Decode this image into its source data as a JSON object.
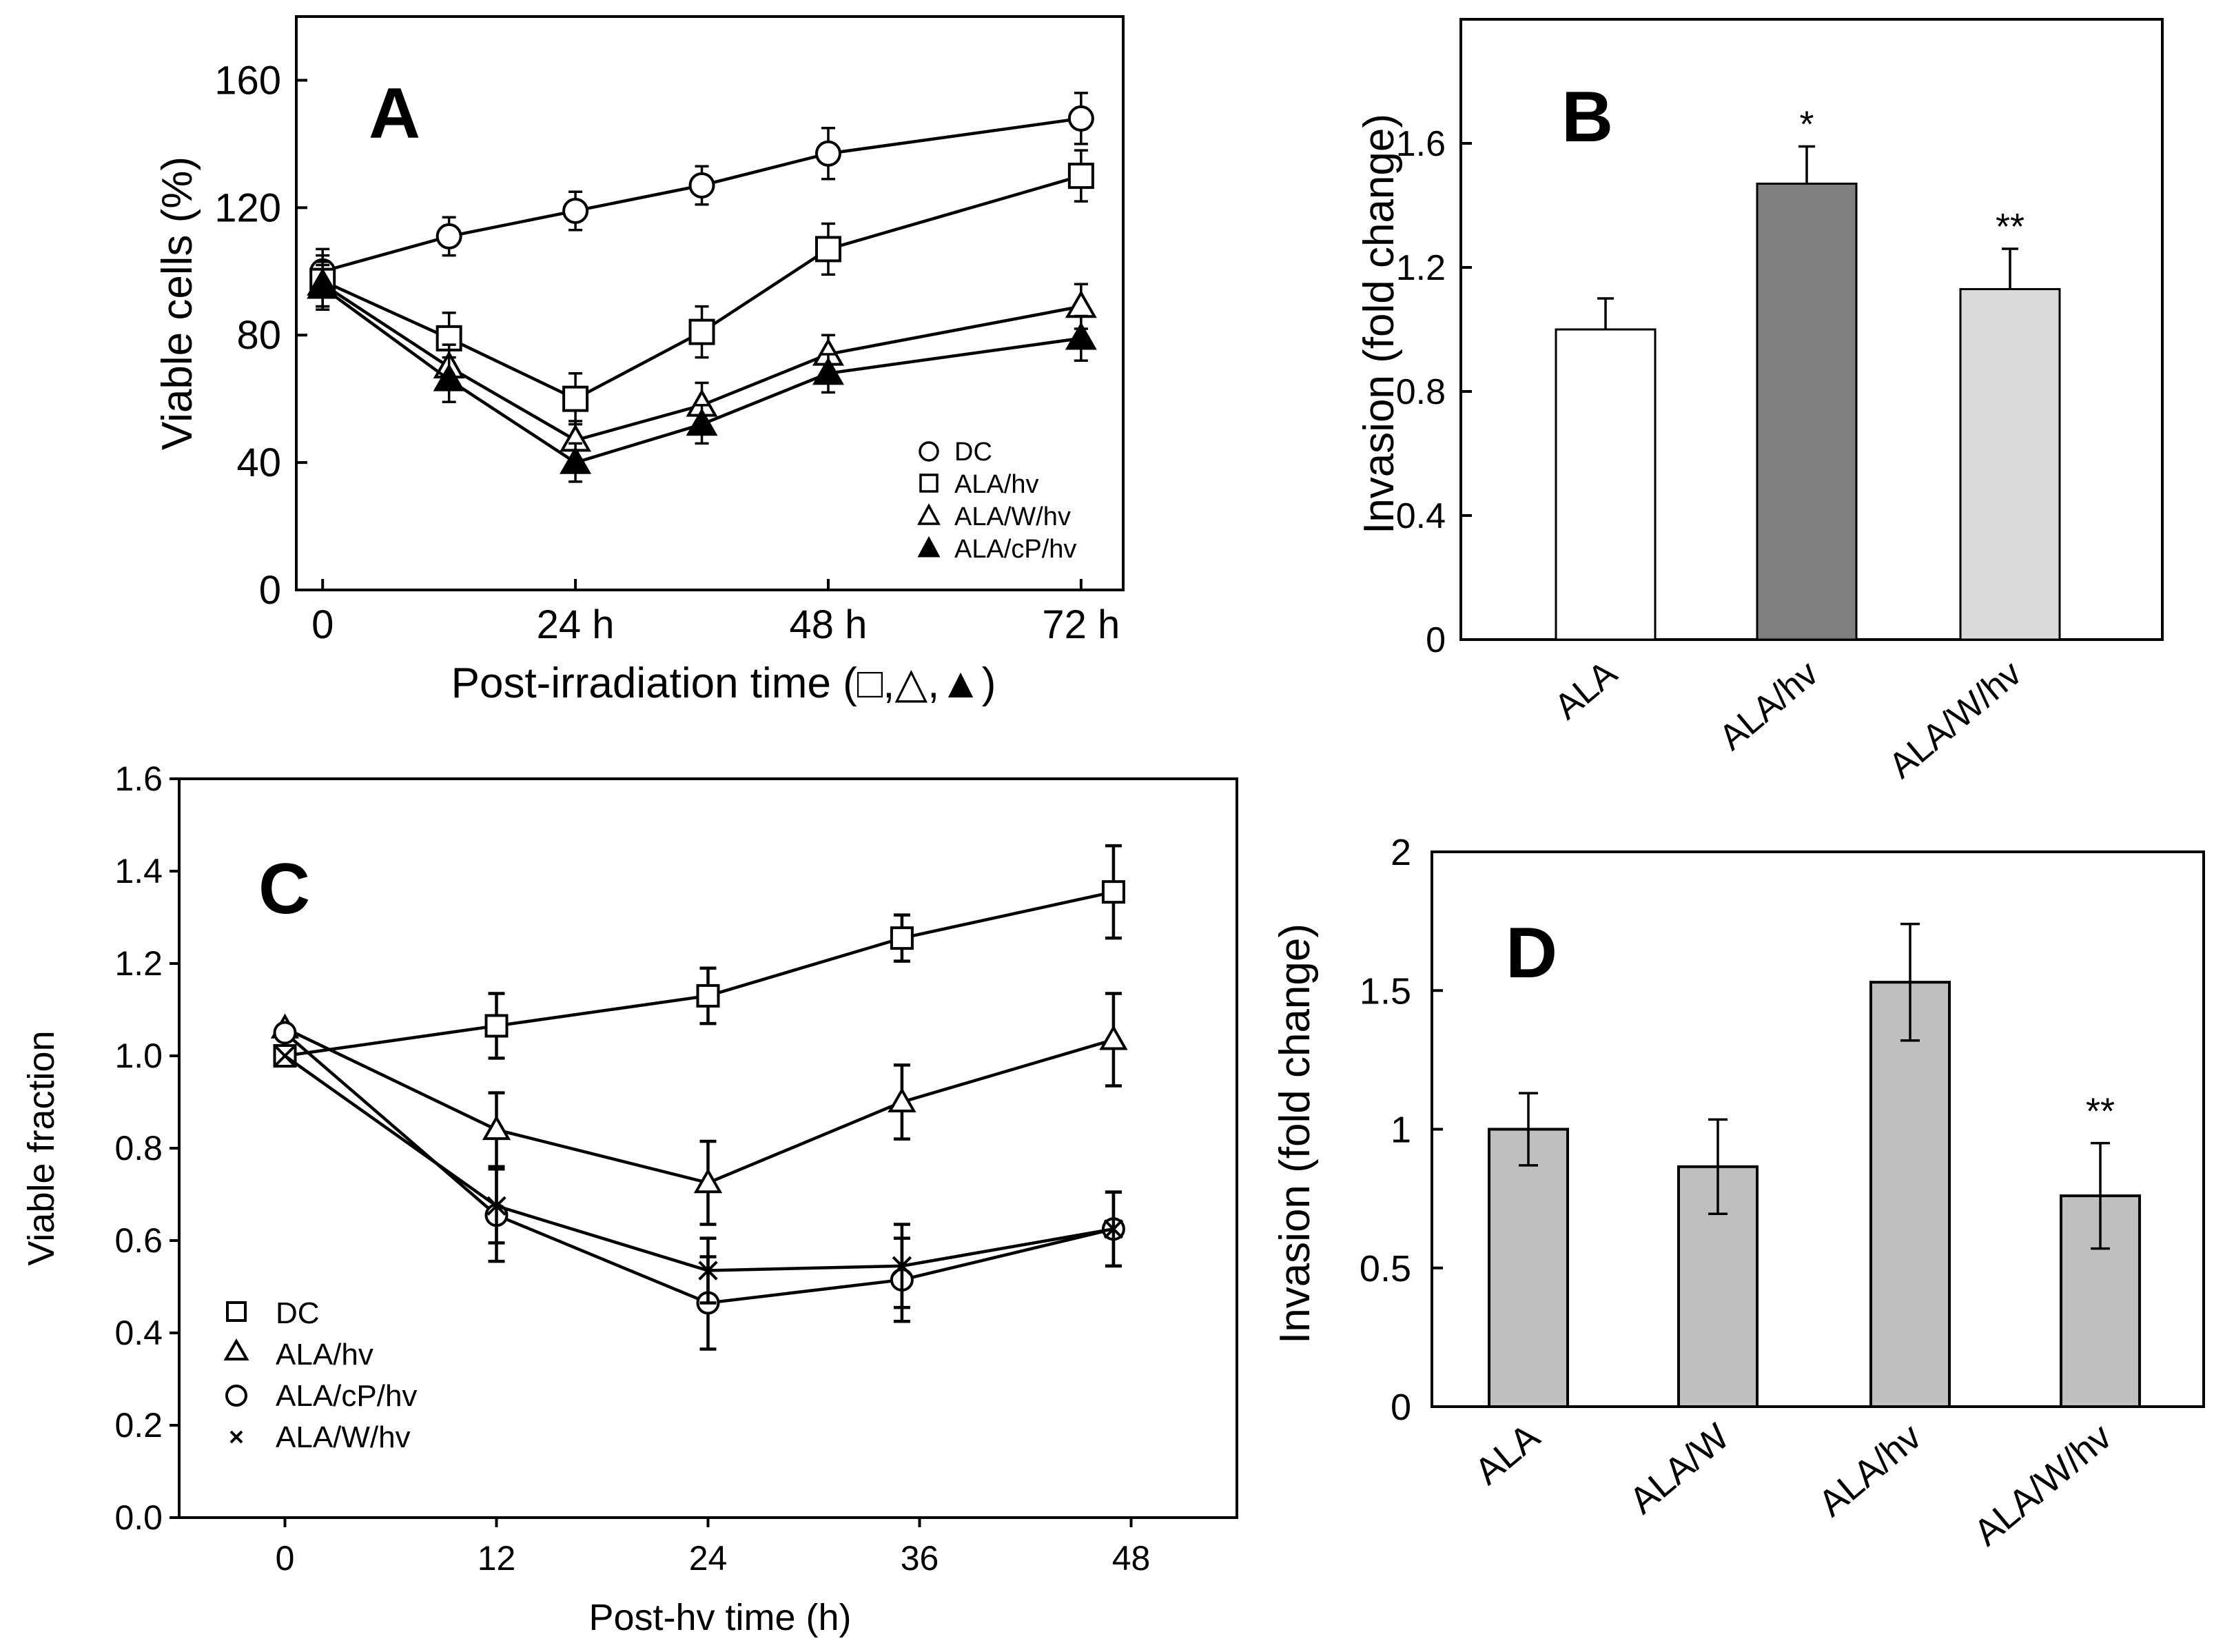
{
  "colors": {
    "ink": "#000000",
    "white": "#ffffff",
    "bar_dark": "#7f7f7f",
    "bar_light": "#d9d9d9",
    "bar_gray": "#bfbfbf"
  },
  "chart_data": [
    {
      "panel": "A",
      "type": "line",
      "ylabel": "Viable cells (%)",
      "xlabel": "Post-irradiation time (□,△,▲)",
      "ylim": [
        0,
        180
      ],
      "xlim": [
        -2.5,
        76
      ],
      "yticks": [
        0,
        40,
        80,
        120,
        160
      ],
      "xticks": [
        {
          "value": 0,
          "label": "0"
        },
        {
          "value": 24,
          "label": "24 h"
        },
        {
          "value": 48,
          "label": "48 h"
        },
        {
          "value": 72,
          "label": "72 h"
        }
      ],
      "series": [
        {
          "name": "DC",
          "marker": "open-circle",
          "x": [
            0,
            12,
            24,
            36,
            48,
            72
          ],
          "values": [
            100,
            111,
            119,
            127,
            137,
            148
          ],
          "err": [
            7,
            6,
            6,
            6,
            8,
            8
          ]
        },
        {
          "name": "ALA/hv",
          "marker": "open-square",
          "x": [
            0,
            12,
            24,
            36,
            48,
            72
          ],
          "values": [
            97,
            79,
            60,
            81,
            107,
            130
          ],
          "err": [
            8,
            8,
            8,
            8,
            8,
            8
          ]
        },
        {
          "name": "ALA/W/hv",
          "marker": "open-triangle",
          "x": [
            0,
            12,
            24,
            36,
            48,
            72
          ],
          "values": [
            96,
            70,
            47,
            58,
            74,
            89
          ],
          "err": [
            7,
            7,
            6,
            7,
            6,
            7
          ]
        },
        {
          "name": "ALA/cP/hv",
          "marker": "filled-triangle",
          "x": [
            0,
            12,
            24,
            36,
            48,
            72
          ],
          "values": [
            95,
            66,
            40,
            52,
            68,
            79
          ],
          "err": [
            7,
            7,
            6,
            6,
            6,
            7
          ]
        }
      ]
    },
    {
      "panel": "B",
      "type": "bar",
      "ylabel": "Invasion (fold change)",
      "ylim": [
        0,
        2.0
      ],
      "yticks": [
        {
          "value": 0,
          "label": "0"
        },
        {
          "value": 0.4,
          "label": "0.4"
        },
        {
          "value": 0.8,
          "label": "0.8"
        },
        {
          "value": 1.2,
          "label": "1.2"
        },
        {
          "value": 1.6,
          "label": "1.6"
        }
      ],
      "categories": [
        "ALA",
        "ALA/hv",
        "ALA/W/hv"
      ],
      "values": [
        1.0,
        1.47,
        1.13
      ],
      "err": [
        0.1,
        0.12,
        0.13
      ],
      "fills": [
        "#ffffff",
        "#7f7f7f",
        "#d9d9d9"
      ],
      "annotations": [
        "",
        "*",
        "**"
      ]
    },
    {
      "panel": "C",
      "type": "line",
      "ylabel": "Viable fraction",
      "xlabel": "Post-hv time (h)",
      "ylim": [
        0,
        1.6
      ],
      "xlim": [
        -6,
        54
      ],
      "yticks": [
        {
          "value": 0,
          "label": "0.0"
        },
        {
          "value": 0.2,
          "label": "0.2"
        },
        {
          "value": 0.4,
          "label": "0.4"
        },
        {
          "value": 0.6,
          "label": "0.6"
        },
        {
          "value": 0.8,
          "label": "0.8"
        },
        {
          "value": 1.0,
          "label": "1.0"
        },
        {
          "value": 1.2,
          "label": "1.2"
        },
        {
          "value": 1.4,
          "label": "1.4"
        },
        {
          "value": 1.6,
          "label": "1.6"
        }
      ],
      "xticks": [
        {
          "value": 0,
          "label": "0"
        },
        {
          "value": 12,
          "label": "12"
        },
        {
          "value": 24,
          "label": "24"
        },
        {
          "value": 36,
          "label": "36"
        },
        {
          "value": 48,
          "label": "48"
        }
      ],
      "series": [
        {
          "name": "DC",
          "marker": "open-square",
          "x": [
            0,
            12,
            24,
            35,
            47
          ],
          "values": [
            1.0,
            1.065,
            1.13,
            1.255,
            1.355
          ],
          "err": [
            0.03,
            0.07,
            0.06,
            0.05,
            0.1
          ]
        },
        {
          "name": "ALA/hv",
          "marker": "open-triangle",
          "x": [
            0,
            12,
            24,
            35,
            47
          ],
          "values": [
            1.06,
            0.84,
            0.725,
            0.9,
            1.035
          ],
          "err": [
            0.03,
            0.08,
            0.09,
            0.08,
            0.1
          ]
        },
        {
          "name": "ALA/cP/hv",
          "marker": "open-circle",
          "x": [
            0,
            12,
            24,
            35,
            47
          ],
          "values": [
            1.05,
            0.655,
            0.465,
            0.515,
            0.625
          ],
          "err": [
            0.03,
            0.1,
            0.1,
            0.09,
            0.08
          ]
        },
        {
          "name": "ALA/W/hv",
          "marker": "x",
          "x": [
            0,
            12,
            24,
            35,
            47
          ],
          "values": [
            1.0,
            0.675,
            0.535,
            0.545,
            0.625
          ],
          "err": [
            0.03,
            0.08,
            0.07,
            0.09,
            0.08
          ]
        }
      ]
    },
    {
      "panel": "D",
      "type": "bar",
      "ylabel": "Invasion (fold change)",
      "ylim": [
        0,
        2.0
      ],
      "yticks": [
        {
          "value": 0,
          "label": "0"
        },
        {
          "value": 0.5,
          "label": "0.5"
        },
        {
          "value": 1.0,
          "label": "1"
        },
        {
          "value": 1.5,
          "label": "1.5"
        },
        {
          "value": 2.0,
          "label": "2"
        }
      ],
      "categories": [
        "ALA",
        "ALA/W",
        "ALA/hv",
        "ALA/W/hv"
      ],
      "values": [
        1.0,
        0.865,
        1.53,
        0.76
      ],
      "err": [
        0.13,
        0.17,
        0.21,
        0.19
      ],
      "fills": [
        "#bfbfbf",
        "#bfbfbf",
        "#bfbfbf",
        "#bfbfbf"
      ],
      "annotations": [
        "",
        "",
        "",
        "**"
      ]
    }
  ],
  "panels": {
    "A": {
      "letter": "A",
      "legend": [
        "DC",
        "ALA/hv",
        "ALA/W/hv",
        "ALA/cP/hv"
      ]
    },
    "B": {
      "letter": "B"
    },
    "C": {
      "letter": "C",
      "legend": [
        "DC",
        "ALA/hv",
        "ALA/cP/hv",
        "ALA/W/hv"
      ]
    },
    "D": {
      "letter": "D"
    }
  }
}
